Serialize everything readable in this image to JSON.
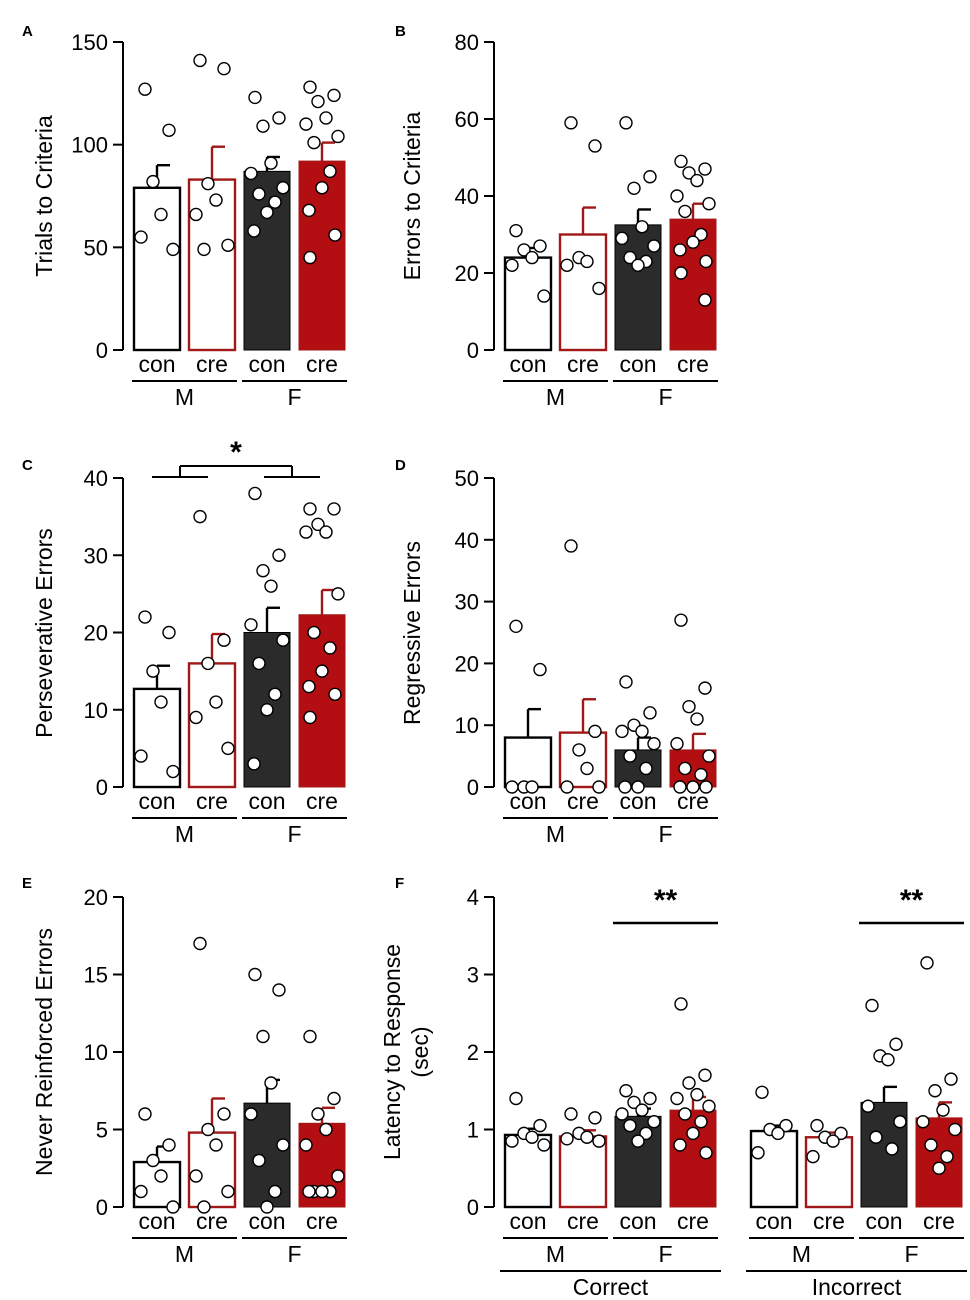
{
  "colors": {
    "con_male": "#ffffff",
    "cre_male": "#ffffff",
    "con_female": "#2b2b2b",
    "cre_female": "#b30f12",
    "con_outline": "#000000",
    "cre_outline": "#a01818"
  },
  "chart_data": [
    {
      "panel": "A",
      "type": "bar",
      "ylabel": "Trials to Criteria",
      "ylim": [
        0,
        150
      ],
      "yticks": [
        "0",
        "50",
        "100",
        "150"
      ],
      "categories": [
        "con",
        "cre",
        "con",
        "cre"
      ],
      "sex_groups": [
        "M",
        "F"
      ],
      "groups": [
        "con_male",
        "cre_male",
        "con_female",
        "cre_female"
      ],
      "values": [
        79,
        83,
        87,
        92
      ],
      "errors": [
        11,
        16,
        7,
        9
      ],
      "points": [
        [
          127,
          107,
          82,
          66,
          55,
          49
        ],
        [
          141,
          137,
          81,
          73,
          66,
          51,
          49
        ],
        [
          123,
          113,
          109,
          91,
          86,
          79,
          76,
          72,
          67,
          58
        ],
        [
          128,
          124,
          121,
          113,
          110,
          104,
          101,
          87,
          79,
          68,
          56,
          45
        ]
      ],
      "annotations": []
    },
    {
      "panel": "B",
      "type": "bar",
      "ylabel": "Errors to Criteria",
      "ylim": [
        0,
        80
      ],
      "yticks": [
        "0",
        "20",
        "40",
        "60",
        "80"
      ],
      "categories": [
        "con",
        "cre",
        "con",
        "cre"
      ],
      "sex_groups": [
        "M",
        "F"
      ],
      "groups": [
        "con_male",
        "cre_male",
        "con_female",
        "cre_female"
      ],
      "values": [
        24,
        30,
        32.5,
        34
      ],
      "errors": [
        2.5,
        7,
        4,
        4
      ],
      "points": [
        [
          31,
          27,
          26,
          24,
          22,
          14
        ],
        [
          59,
          53,
          24,
          23,
          22,
          16
        ],
        [
          59,
          45,
          42,
          32,
          29,
          27,
          24,
          23,
          22
        ],
        [
          49,
          47,
          46,
          44,
          40,
          38,
          36,
          30,
          28,
          26,
          23,
          20,
          13
        ]
      ],
      "annotations": []
    },
    {
      "panel": "C",
      "type": "bar",
      "ylabel": "Perseverative Errors",
      "ylim": [
        0,
        40
      ],
      "yticks": [
        "0",
        "10",
        "20",
        "30",
        "40"
      ],
      "categories": [
        "con",
        "cre",
        "con",
        "cre"
      ],
      "sex_groups": [
        "M",
        "F"
      ],
      "groups": [
        "con_male",
        "cre_male",
        "con_female",
        "cre_female"
      ],
      "values": [
        12.7,
        16,
        20,
        22.3
      ],
      "errors": [
        3,
        3.8,
        3.2,
        3.2
      ],
      "points": [
        [
          22,
          20,
          15,
          11,
          4,
          2
        ],
        [
          35,
          19,
          16,
          11,
          9,
          5
        ],
        [
          38,
          30,
          28,
          26,
          21,
          19,
          16,
          12,
          10,
          3
        ],
        [
          36,
          36,
          34,
          33,
          33,
          25,
          20,
          18,
          15,
          13,
          12,
          9
        ]
      ],
      "annotations": [
        "*"
      ]
    },
    {
      "panel": "D",
      "type": "bar",
      "ylabel": "Regressive Errors",
      "ylim": [
        0,
        50
      ],
      "yticks": [
        "0",
        "10",
        "20",
        "30",
        "40",
        "50"
      ],
      "categories": [
        "con",
        "cre",
        "con",
        "cre"
      ],
      "sex_groups": [
        "M",
        "F"
      ],
      "groups": [
        "con_male",
        "cre_male",
        "con_female",
        "cre_female"
      ],
      "values": [
        8,
        8.8,
        6,
        6
      ],
      "errors": [
        4.6,
        5.4,
        2,
        2.6
      ],
      "points": [
        [
          26,
          19,
          0,
          0,
          0
        ],
        [
          39,
          9,
          6,
          3,
          0,
          0
        ],
        [
          17,
          12,
          10,
          9,
          9,
          7,
          5,
          3,
          0,
          0
        ],
        [
          27,
          16,
          13,
          11,
          7,
          5,
          3,
          2,
          0,
          0,
          0
        ]
      ],
      "annotations": []
    },
    {
      "panel": "E",
      "type": "bar",
      "ylabel": "Never Reinforced Errors",
      "ylim": [
        0,
        20
      ],
      "yticks": [
        "0",
        "5",
        "10",
        "15",
        "20"
      ],
      "categories": [
        "con",
        "cre",
        "con",
        "cre"
      ],
      "sex_groups": [
        "M",
        "F"
      ],
      "groups": [
        "con_male",
        "cre_male",
        "con_female",
        "cre_female"
      ],
      "values": [
        2.9,
        4.8,
        6.7,
        5.4
      ],
      "errors": [
        1,
        2.2,
        1.5,
        1
      ],
      "points": [
        [
          6,
          4,
          3,
          2,
          1,
          0
        ],
        [
          17,
          6,
          5,
          4,
          2,
          1,
          0
        ],
        [
          15,
          14,
          11,
          8,
          6,
          4,
          3,
          1,
          0
        ],
        [
          11,
          7,
          6,
          5,
          4,
          2,
          1,
          1,
          1,
          1
        ]
      ],
      "annotations": []
    },
    {
      "panel": "F",
      "type": "bar",
      "ylabel_lines": [
        "Latency to Response",
        "(sec)"
      ],
      "ylim": [
        0,
        4
      ],
      "yticks": [
        "0",
        "1",
        "2",
        "3",
        "4"
      ],
      "categories": [
        "con",
        "cre",
        "con",
        "cre",
        "con",
        "cre",
        "con",
        "cre"
      ],
      "sex_groups": [
        "M",
        "F",
        "M",
        "F"
      ],
      "response_groups": [
        "Correct",
        "Incorrect"
      ],
      "groups": [
        "con_male",
        "cre_male",
        "con_female",
        "cre_female",
        "con_male",
        "cre_male",
        "con_female",
        "cre_female"
      ],
      "values": [
        0.93,
        0.91,
        1.17,
        1.25,
        0.98,
        0.9,
        1.35,
        1.15
      ],
      "errors": [
        0.08,
        0.08,
        0.1,
        0.17,
        0.07,
        0.06,
        0.2,
        0.2
      ],
      "points": [
        [
          1.4,
          1.05,
          0.95,
          0.9,
          0.85,
          0.8
        ],
        [
          1.2,
          1.15,
          0.95,
          0.9,
          0.88,
          0.85
        ],
        [
          1.5,
          1.4,
          1.35,
          1.25,
          1.2,
          1.1,
          1.05,
          0.95,
          0.85
        ],
        [
          2.62,
          1.7,
          1.6,
          1.45,
          1.4,
          1.3,
          1.2,
          1.1,
          0.95,
          0.8,
          0.7
        ]
      ],
      "points_incorrect": [
        [
          1.48,
          1.05,
          1.0,
          0.95,
          0.7
        ],
        [
          1.05,
          0.95,
          0.9,
          0.85,
          0.65
        ],
        [
          2.6,
          2.1,
          1.95,
          1.9,
          1.3,
          1.1,
          0.9,
          0.75
        ],
        [
          3.15,
          1.65,
          1.5,
          1.25,
          1.1,
          1.0,
          0.8,
          0.65,
          0.5
        ]
      ],
      "annotations": [
        "**",
        "**"
      ]
    }
  ]
}
